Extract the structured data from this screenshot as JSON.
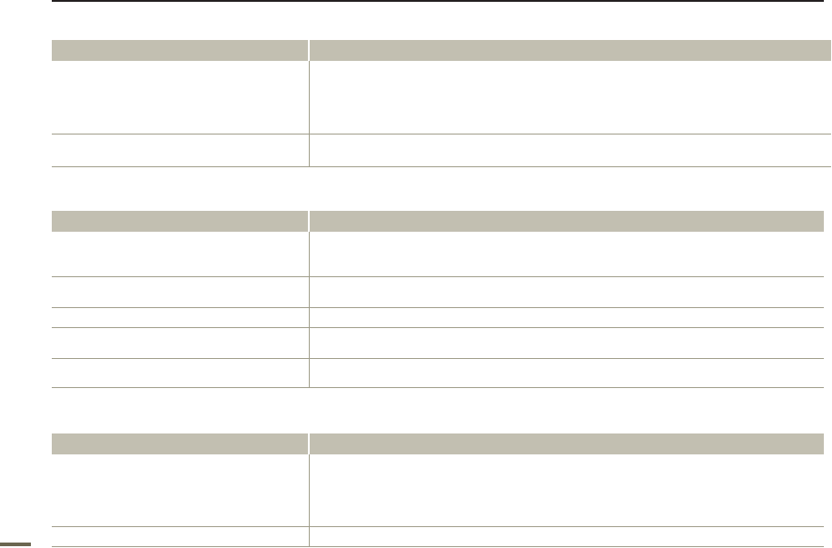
{
  "colors": {
    "header_fill": "#c2bfb1",
    "row_rule": "#a09d8a",
    "top_rule": "#231f20",
    "page_marker": "#6b6650"
  },
  "tables": [
    {
      "header": [
        "",
        ""
      ],
      "rows": [
        [
          "",
          ""
        ],
        [
          "",
          ""
        ]
      ]
    },
    {
      "header": [
        "",
        ""
      ],
      "rows": [
        [
          "",
          ""
        ],
        [
          "",
          ""
        ],
        [
          "",
          ""
        ],
        [
          "",
          ""
        ],
        [
          "",
          ""
        ]
      ]
    },
    {
      "header": [
        "",
        ""
      ],
      "rows": [
        [
          "",
          ""
        ],
        [
          "",
          ""
        ]
      ]
    }
  ]
}
